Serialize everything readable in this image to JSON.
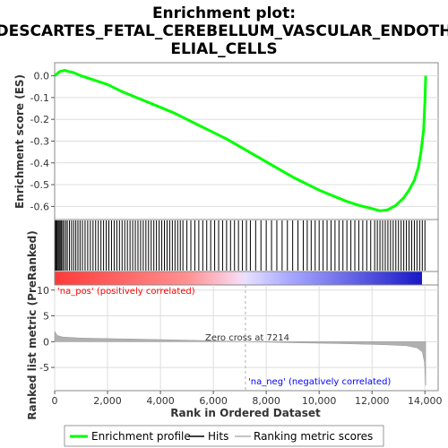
{
  "chart_data": {
    "type": "line",
    "title": "Enrichment plot: DESCARTES_FETAL_CEREBELLUM_VASCULAR_ENDOTHELIAL_CELLS",
    "title_lines": [
      "Enrichment plot:",
      "DESCARTES_FETAL_CEREBELLUM_VASCULAR_ENDOTH",
      "ELIAL_CELLS"
    ],
    "colors": {
      "es_line": "#00ff00",
      "hits": "#000000",
      "metric_fill": "#b0b0b0",
      "pos_label": "#ff0000",
      "neg_label": "#0000ff",
      "zero_cross_line": "#b0b0b0"
    },
    "top_panel": {
      "ylabel": "Enrichment score (ES)",
      "ylim": [
        -0.66,
        0.06
      ],
      "yticks": [
        0.0,
        -0.1,
        -0.2,
        -0.3,
        -0.4,
        -0.5,
        -0.6
      ],
      "ytick_labels": [
        "0.0",
        "-0.1",
        "-0.2",
        "-0.3",
        "-0.4",
        "-0.5",
        "-0.6"
      ],
      "series": [
        {
          "name": "Enrichment profile",
          "x": [
            0,
            200,
            400,
            500,
            700,
            1000,
            1500,
            2000,
            2500,
            3000,
            3500,
            4000,
            4500,
            5000,
            5500,
            6000,
            6500,
            7000,
            7500,
            8000,
            8500,
            9000,
            9500,
            10000,
            10500,
            11000,
            11500,
            12000,
            12300,
            12600,
            12900,
            13200,
            13400,
            13600,
            13750,
            13850,
            13950,
            14000,
            14030
          ],
          "values": [
            0.0,
            0.02,
            0.025,
            0.02,
            0.015,
            0.0,
            -0.02,
            -0.04,
            -0.07,
            -0.095,
            -0.12,
            -0.145,
            -0.17,
            -0.2,
            -0.23,
            -0.26,
            -0.29,
            -0.325,
            -0.36,
            -0.395,
            -0.43,
            -0.465,
            -0.495,
            -0.525,
            -0.55,
            -0.575,
            -0.595,
            -0.61,
            -0.62,
            -0.615,
            -0.595,
            -0.56,
            -0.525,
            -0.48,
            -0.42,
            -0.35,
            -0.25,
            -0.12,
            0.0
          ]
        }
      ]
    },
    "hits_panel": {
      "label": "Hits",
      "hit_positions": [
        30,
        60,
        90,
        130,
        170,
        210,
        250,
        300,
        350,
        420,
        480,
        560,
        640,
        720,
        800,
        880,
        960,
        1050,
        1150,
        1250,
        1350,
        1450,
        1550,
        1650,
        1750,
        1850,
        1950,
        2050,
        2150,
        2250,
        2350,
        2450,
        2550,
        2650,
        2750,
        2850,
        2950,
        3050,
        3150,
        3250,
        3350,
        3450,
        3550,
        3650,
        3750,
        3850,
        3950,
        4050,
        4150,
        4250,
        4350,
        4450,
        4550,
        4650,
        4750,
        4850,
        5000,
        5150,
        5300,
        5450,
        5600,
        5750,
        5900,
        6050,
        6200,
        6350,
        6500,
        6650,
        6800,
        6950,
        7100,
        7250,
        7400,
        7600,
        7800,
        8000,
        8200,
        8400,
        8600,
        8800,
        9000,
        9200,
        9400,
        9550,
        9700,
        9850,
        10000,
        10150,
        10300,
        10450,
        10600,
        10750,
        10900,
        11050,
        11200,
        11350,
        11500,
        11650,
        11800,
        11950,
        12100,
        12200,
        12300,
        12400,
        12500,
        12600,
        12700,
        12800,
        12900,
        13000,
        13100,
        13200,
        13300,
        13400,
        13500,
        13600,
        13700,
        13800,
        13900,
        14000
      ]
    },
    "bottom_panel": {
      "ylabel": "Ranked list metric (PreRanked)",
      "xlabel": "Rank in Ordered Dataset",
      "xlim": [
        0,
        14500
      ],
      "xticks": [
        0,
        2000,
        4000,
        6000,
        8000,
        10000,
        12000,
        14000
      ],
      "xtick_labels": [
        "0",
        "2,000",
        "4,000",
        "6,000",
        "8,000",
        "10,000",
        "12,000",
        "14,000"
      ],
      "ylim": [
        -9.5,
        11
      ],
      "yticks": [
        10,
        5,
        0,
        -5
      ],
      "ytick_labels": [
        "10",
        "5",
        "0",
        "-5"
      ],
      "metric_x": [
        0,
        100,
        300,
        1000,
        3000,
        5000,
        7214,
        9000,
        11000,
        12500,
        13300,
        13700,
        13900,
        13980,
        14030
      ],
      "metric_values": [
        2.0,
        1.2,
        0.9,
        0.7,
        0.5,
        0.3,
        0.0,
        -0.2,
        -0.4,
        -0.6,
        -0.8,
        -1.2,
        -2.0,
        -4.0,
        -8.5
      ],
      "zero_cross_rank": 7214,
      "zero_cross_label": "Zero cross at 7214",
      "pos_label": "'na_pos' (positively correlated)",
      "neg_label": "'na_neg' (negatively correlated)"
    },
    "legend": {
      "position": "bottom",
      "entries": [
        "Enrichment profile",
        "Hits",
        "Ranking metric scores"
      ]
    }
  }
}
